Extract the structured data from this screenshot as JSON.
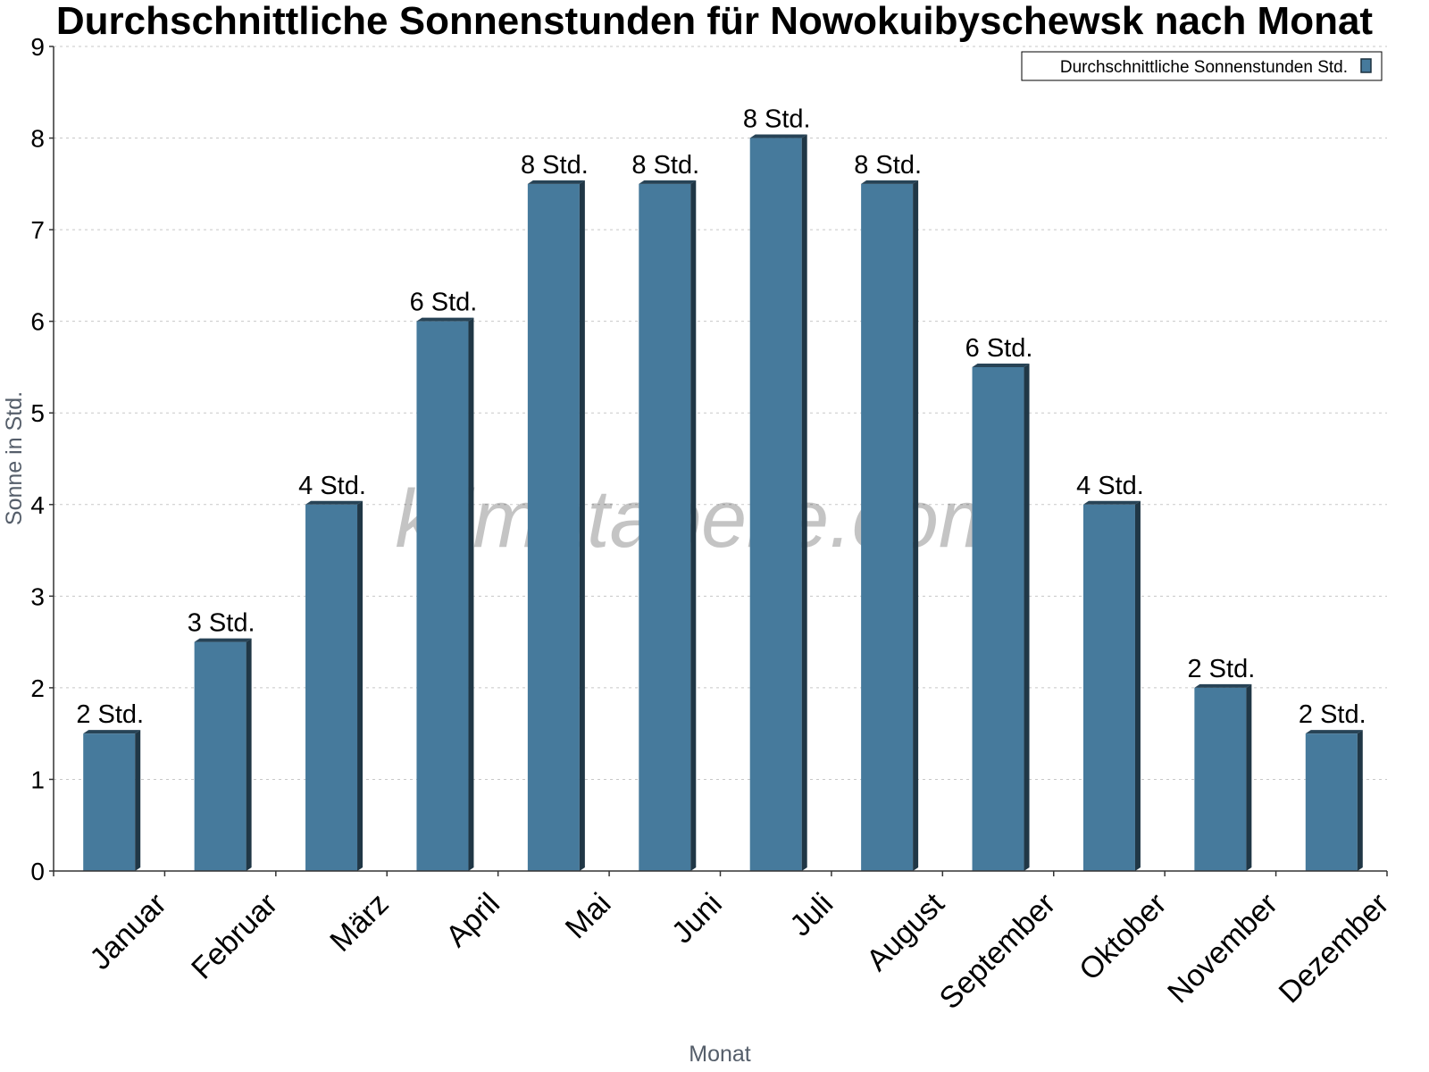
{
  "chart_data": {
    "type": "bar",
    "title": "Durchschnittliche Sonnenstunden für Nowokuibyschewsk nach Monat",
    "xlabel": "Monat",
    "ylabel": "Sonne in Std.",
    "ylim": [
      0,
      9
    ],
    "yticks": [
      0,
      1,
      2,
      3,
      4,
      5,
      6,
      7,
      8,
      9
    ],
    "grid": true,
    "legend_position": "top-right",
    "categories": [
      "Januar",
      "Februar",
      "März",
      "April",
      "Mai",
      "Juni",
      "Juli",
      "August",
      "September",
      "Oktober",
      "November",
      "Dezember"
    ],
    "series": [
      {
        "name": "Durchschnittliche Sonnenstunden Std.",
        "color": "#467a9c",
        "values": [
          1.5,
          2.5,
          4,
          6,
          7.5,
          7.5,
          8,
          7.5,
          5.5,
          4,
          2,
          1.5
        ],
        "labels": [
          "2 Std.",
          "3 Std.",
          "4 Std.",
          "6 Std.",
          "8 Std.",
          "8 Std.",
          "8 Std.",
          "8 Std.",
          "6 Std.",
          "4 Std.",
          "2 Std.",
          "2 Std."
        ]
      }
    ],
    "watermark": "klimatabelle.com"
  }
}
